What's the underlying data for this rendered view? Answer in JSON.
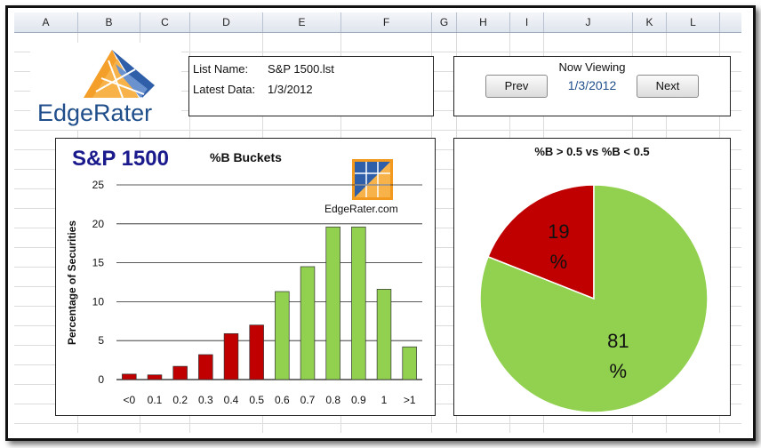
{
  "spreadsheet": {
    "columns": [
      "A",
      "B",
      "C",
      "D",
      "E",
      "F",
      "G",
      "H",
      "I",
      "J",
      "K",
      "L"
    ]
  },
  "logo": {
    "text": "EdgeRater"
  },
  "list_info": {
    "list_name_label": "List Name:",
    "list_name_value": "S&P 1500.lst",
    "latest_data_label": "Latest Data:",
    "latest_data_value": "1/3/2012"
  },
  "navigation": {
    "title": "Now Viewing",
    "prev_label": "Prev",
    "date": "1/3/2012",
    "next_label": "Next"
  },
  "bar_chart_header": {
    "big_title": "S&P 1500",
    "subtitle": "%B Buckets",
    "watermark": "EdgeRater.com"
  },
  "pie_chart_header": {
    "title": "%B > 0.5 vs %B < 0.5"
  },
  "colors": {
    "red": "#c00000",
    "green": "#92d050",
    "title_blue": "#1a1a8c",
    "logo_blue": "#1f4e8a"
  },
  "chart_data": [
    {
      "type": "bar",
      "title": "%B Buckets",
      "ylabel": "Percentage of Securities",
      "xlabel": "",
      "ylim": [
        0,
        25
      ],
      "yticks": [
        0,
        5,
        10,
        15,
        20,
        25
      ],
      "categories": [
        "<0",
        "0.1",
        "0.2",
        "0.3",
        "0.4",
        "0.5",
        "0.6",
        "0.7",
        "0.8",
        "0.9",
        "1",
        ">1"
      ],
      "values": [
        0.7,
        0.6,
        1.7,
        3.2,
        5.9,
        7.0,
        11.3,
        14.5,
        19.6,
        19.6,
        11.6,
        4.2
      ],
      "bar_colors": [
        "red",
        "red",
        "red",
        "red",
        "red",
        "red",
        "green",
        "green",
        "green",
        "green",
        "green",
        "green"
      ],
      "grid": true
    },
    {
      "type": "pie",
      "title": "%B > 0.5 vs %B < 0.5",
      "slices": [
        {
          "label": "19\n%",
          "value": 19,
          "color": "red"
        },
        {
          "label": "81\n%",
          "value": 81,
          "color": "green"
        }
      ]
    }
  ]
}
